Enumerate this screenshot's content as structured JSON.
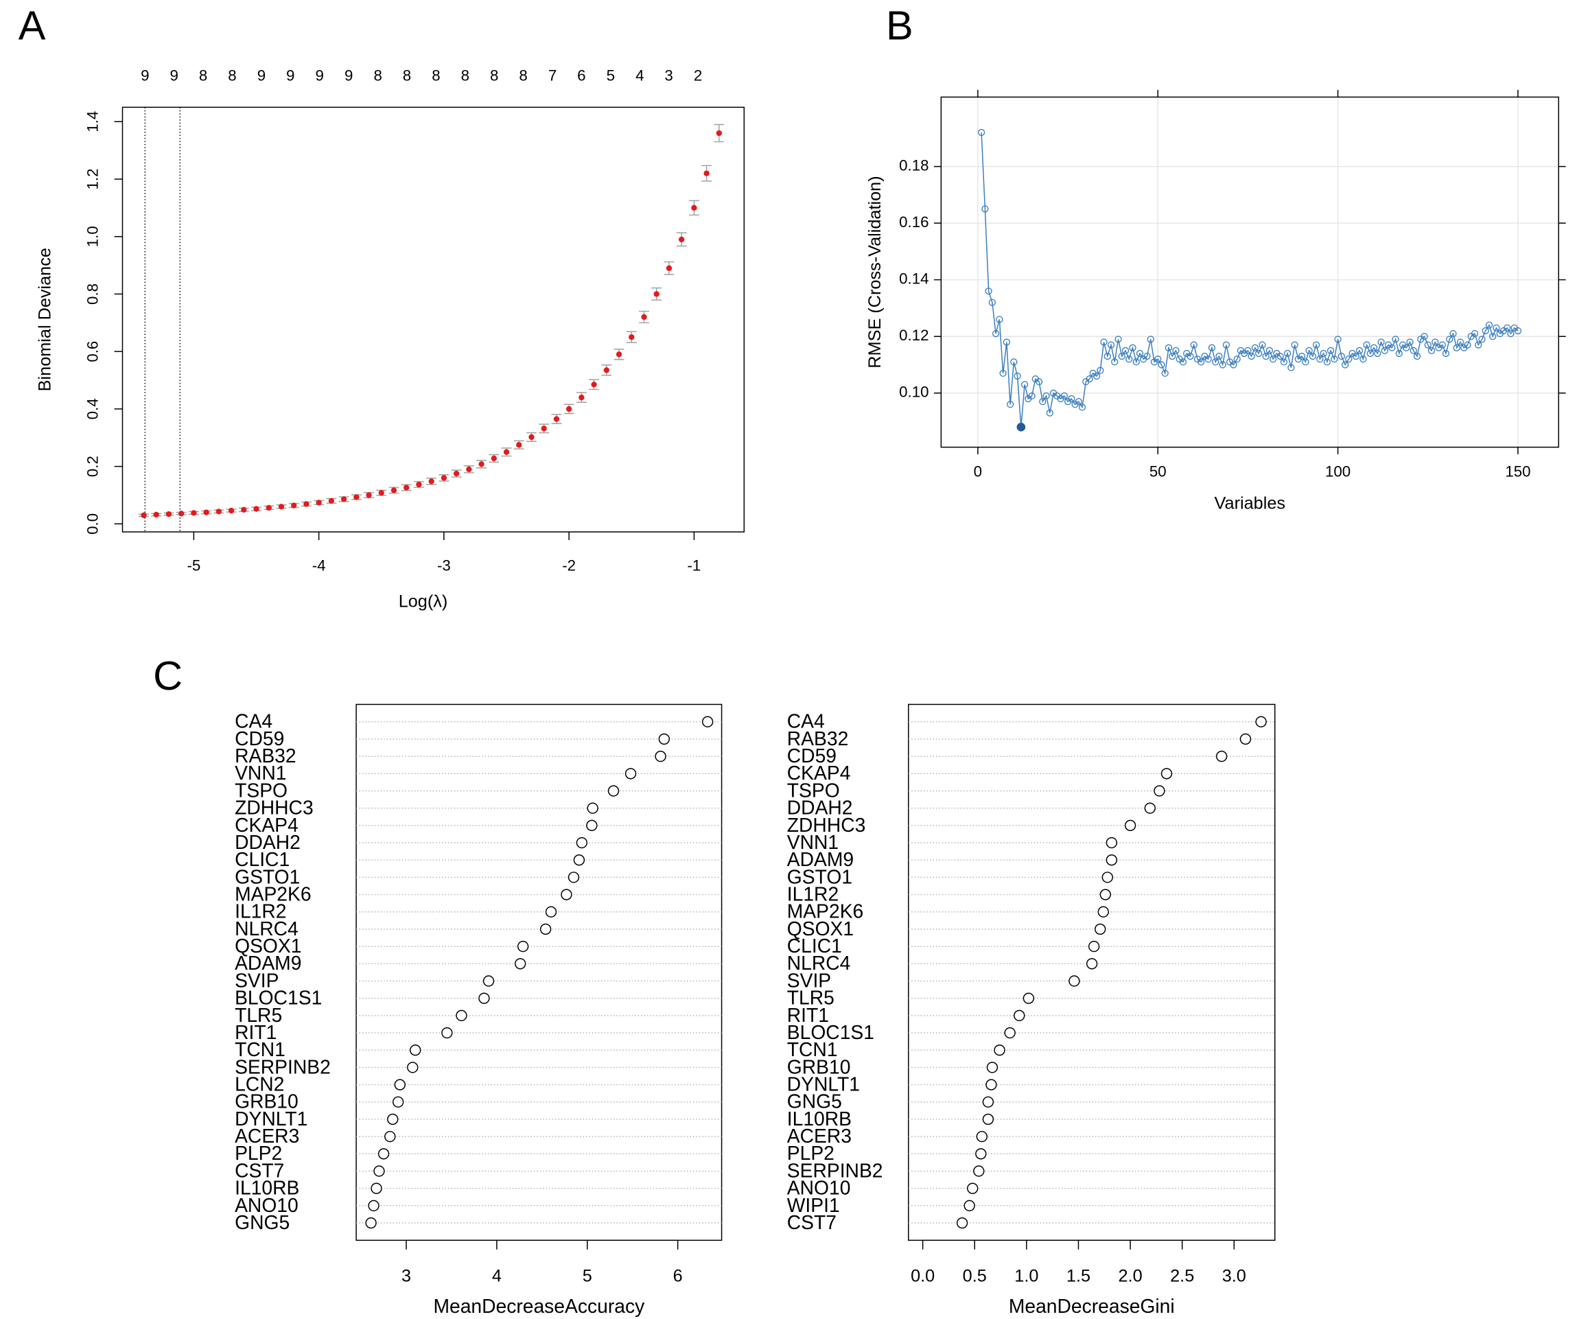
{
  "chart_data": [
    {
      "type": "errorbar",
      "panel_label": "A",
      "x_label": "Log(λ)",
      "y_label": "Binomial Deviance",
      "color": "#e41a1c",
      "error_color": "#a0a0a0",
      "x": [
        -5.4,
        -5.3,
        -5.2,
        -5.1,
        -5.0,
        -4.9,
        -4.8,
        -4.7,
        -4.6,
        -4.5,
        -4.4,
        -4.3,
        -4.2,
        -4.1,
        -4.0,
        -3.9,
        -3.8,
        -3.7,
        -3.6,
        -3.5,
        -3.4,
        -3.3,
        -3.2,
        -3.1,
        -3.0,
        -2.9,
        -2.8,
        -2.7,
        -2.6,
        -2.5,
        -2.4,
        -2.3,
        -2.2,
        -2.1,
        -2.0,
        -1.9,
        -1.8,
        -1.7,
        -1.6,
        -1.5,
        -1.4,
        -1.3,
        -1.2,
        -1.1,
        -1.0,
        -0.9,
        -0.8
      ],
      "values": [
        0.03,
        0.032,
        0.034,
        0.036,
        0.038,
        0.04,
        0.043,
        0.046,
        0.049,
        0.052,
        0.056,
        0.06,
        0.064,
        0.069,
        0.074,
        0.08,
        0.086,
        0.093,
        0.1,
        0.108,
        0.117,
        0.126,
        0.137,
        0.148,
        0.16,
        0.175,
        0.19,
        0.208,
        0.228,
        0.25,
        0.275,
        0.302,
        0.332,
        0.365,
        0.4,
        0.44,
        0.485,
        0.535,
        0.59,
        0.65,
        0.72,
        0.8,
        0.89,
        0.99,
        1.1,
        1.22,
        1.36
      ],
      "errors": [
        0.004,
        0.004,
        0.004,
        0.004,
        0.005,
        0.005,
        0.005,
        0.005,
        0.006,
        0.006,
        0.006,
        0.006,
        0.007,
        0.007,
        0.007,
        0.008,
        0.008,
        0.008,
        0.009,
        0.009,
        0.01,
        0.01,
        0.01,
        0.011,
        0.011,
        0.012,
        0.012,
        0.013,
        0.013,
        0.014,
        0.014,
        0.015,
        0.015,
        0.016,
        0.016,
        0.017,
        0.017,
        0.018,
        0.018,
        0.019,
        0.02,
        0.021,
        0.022,
        0.023,
        0.025,
        0.027,
        0.03
      ],
      "xlim": [
        -5.57,
        -0.6
      ],
      "ylim": [
        -0.028,
        1.45
      ],
      "xticks": [
        -5,
        -4,
        -3,
        -2,
        -1
      ],
      "yticks": [
        {
          "value": 0,
          "label": "0.0"
        },
        0.2,
        0.4,
        0.6,
        0.8,
        {
          "value": 1,
          "label": "1.0"
        },
        1.2,
        1.4
      ],
      "top_ticks": [
        {
          "value": -5.39,
          "label": "9"
        },
        {
          "value": -5.157,
          "label": "9"
        },
        {
          "value": -4.925,
          "label": "8"
        },
        {
          "value": -4.692,
          "label": "8"
        },
        {
          "value": -4.459,
          "label": "9"
        },
        {
          "value": -4.227,
          "label": "9"
        },
        {
          "value": -3.994,
          "label": "9"
        },
        {
          "value": -3.761,
          "label": "9"
        },
        {
          "value": -3.528,
          "label": "8"
        },
        {
          "value": -3.296,
          "label": "8"
        },
        {
          "value": -3.063,
          "label": "8"
        },
        {
          "value": -2.83,
          "label": "8"
        },
        {
          "value": -2.598,
          "label": "8"
        },
        {
          "value": -2.365,
          "label": "8"
        },
        {
          "value": -2.132,
          "label": "7"
        },
        {
          "value": -1.9,
          "label": "6"
        },
        {
          "value": -1.667,
          "label": "5"
        },
        {
          "value": -1.434,
          "label": "4"
        },
        {
          "value": -1.202,
          "label": "3"
        },
        {
          "value": -0.969,
          "label": "2"
        }
      ],
      "vlines": [
        -5.39,
        -5.11
      ]
    },
    {
      "type": "line",
      "panel_label": "B",
      "x_label": "Variables",
      "y_label": "RMSE (Cross-Validation)",
      "color": "#3a7ebf",
      "grid": true,
      "selected_x": 12,
      "x": [
        1,
        2,
        3,
        4,
        5,
        6,
        7,
        8,
        9,
        10,
        11,
        12,
        13,
        14,
        15,
        16,
        17,
        18,
        19,
        20,
        21,
        22,
        23,
        24,
        25,
        26,
        27,
        28,
        29,
        30,
        31,
        32,
        33,
        34,
        35,
        36,
        37,
        38,
        39,
        40,
        41,
        42,
        43,
        44,
        45,
        46,
        47,
        48,
        49,
        50,
        51,
        52,
        53,
        54,
        55,
        56,
        57,
        58,
        59,
        60,
        61,
        62,
        63,
        64,
        65,
        66,
        67,
        68,
        69,
        70,
        71,
        72,
        73,
        74,
        75,
        76,
        77,
        78,
        79,
        80,
        81,
        82,
        83,
        84,
        85,
        86,
        87,
        88,
        89,
        90,
        91,
        92,
        93,
        94,
        95,
        96,
        97,
        98,
        99,
        100,
        101,
        102,
        103,
        104,
        105,
        106,
        107,
        108,
        109,
        110,
        111,
        112,
        113,
        114,
        115,
        116,
        117,
        118,
        119,
        120,
        121,
        122,
        123,
        124,
        125,
        126,
        127,
        128,
        129,
        130,
        131,
        132,
        133,
        134,
        135,
        136,
        137,
        138,
        139,
        140,
        141,
        142,
        143,
        144,
        145,
        146,
        147,
        148,
        149,
        150
      ],
      "values": [
        0.192,
        0.165,
        0.136,
        0.132,
        0.121,
        0.126,
        0.107,
        0.118,
        0.096,
        0.111,
        0.106,
        0.088,
        0.103,
        0.098,
        0.099,
        0.105,
        0.104,
        0.097,
        0.099,
        0.093,
        0.1,
        0.099,
        0.098,
        0.099,
        0.097,
        0.098,
        0.096,
        0.097,
        0.095,
        0.104,
        0.105,
        0.107,
        0.106,
        0.108,
        0.118,
        0.113,
        0.117,
        0.111,
        0.119,
        0.113,
        0.115,
        0.112,
        0.116,
        0.111,
        0.114,
        0.112,
        0.113,
        0.119,
        0.111,
        0.112,
        0.11,
        0.107,
        0.116,
        0.113,
        0.115,
        0.112,
        0.111,
        0.114,
        0.113,
        0.117,
        0.112,
        0.111,
        0.113,
        0.112,
        0.116,
        0.111,
        0.113,
        0.11,
        0.117,
        0.111,
        0.11,
        0.112,
        0.115,
        0.114,
        0.115,
        0.113,
        0.116,
        0.114,
        0.117,
        0.113,
        0.115,
        0.112,
        0.114,
        0.113,
        0.111,
        0.114,
        0.109,
        0.117,
        0.112,
        0.113,
        0.111,
        0.115,
        0.113,
        0.117,
        0.112,
        0.114,
        0.111,
        0.115,
        0.112,
        0.119,
        0.113,
        0.11,
        0.112,
        0.114,
        0.113,
        0.115,
        0.112,
        0.117,
        0.114,
        0.116,
        0.114,
        0.118,
        0.115,
        0.117,
        0.116,
        0.119,
        0.114,
        0.117,
        0.116,
        0.118,
        0.115,
        0.113,
        0.119,
        0.12,
        0.117,
        0.115,
        0.118,
        0.116,
        0.117,
        0.114,
        0.119,
        0.121,
        0.116,
        0.118,
        0.116,
        0.117,
        0.12,
        0.121,
        0.117,
        0.119,
        0.122,
        0.124,
        0.12,
        0.123,
        0.121,
        0.122,
        0.123,
        0.121,
        0.123,
        0.122
      ],
      "xlim": [
        -10.2,
        161.3
      ],
      "ylim": [
        0.0809,
        0.2045
      ],
      "xticks": [
        0,
        50,
        100,
        150
      ],
      "yticks": [
        {
          "value": 0.1,
          "label": "0.10"
        },
        {
          "value": 0.12,
          "label": "0.12"
        },
        {
          "value": 0.14,
          "label": "0.14"
        },
        {
          "value": 0.16,
          "label": "0.16"
        },
        {
          "value": 0.18,
          "label": "0.18"
        }
      ]
    },
    {
      "type": "dot",
      "panel_label": "C",
      "x_label": "MeanDecreaseAccuracy",
      "categories": [
        "CA4",
        "CD59",
        "RAB32",
        "VNN1",
        "TSPO",
        "ZDHHC3",
        "CKAP4",
        "DDAH2",
        "CLIC1",
        "GSTO1",
        "MAP2K6",
        "IL1R2",
        "NLRC4",
        "QSOX1",
        "ADAM9",
        "SVIP",
        "BLOC1S1",
        "TLR5",
        "RIT1",
        "TCN1",
        "SERPINB2",
        "LCN2",
        "GRB10",
        "DYNLT1",
        "ACER3",
        "PLP2",
        "CST7",
        "IL10RB",
        "ANO10",
        "GNG5"
      ],
      "values": [
        6.33,
        5.85,
        5.81,
        5.48,
        5.29,
        5.06,
        5.05,
        4.94,
        4.91,
        4.85,
        4.77,
        4.6,
        4.54,
        4.29,
        4.26,
        3.91,
        3.86,
        3.61,
        3.45,
        3.1,
        3.07,
        2.93,
        2.91,
        2.85,
        2.82,
        2.75,
        2.7,
        2.67,
        2.64,
        2.61
      ],
      "xlim": [
        2.447,
        6.485
      ],
      "xticks": [
        3,
        4,
        5,
        6
      ]
    },
    {
      "type": "dot",
      "x_label": "MeanDecreaseGini",
      "categories": [
        "CA4",
        "RAB32",
        "CD59",
        "CKAP4",
        "TSPO",
        "DDAH2",
        "ZDHHC3",
        "VNN1",
        "ADAM9",
        "GSTO1",
        "IL1R2",
        "MAP2K6",
        "QSOX1",
        "CLIC1",
        "NLRC4",
        "SVIP",
        "TLR5",
        "RIT1",
        "BLOC1S1",
        "TCN1",
        "GRB10",
        "DYNLT1",
        "GNG5",
        "IL10RB",
        "ACER3",
        "PLP2",
        "SERPINB2",
        "ANO10",
        "WIPI1",
        "CST7"
      ],
      "values": [
        3.26,
        3.11,
        2.88,
        2.35,
        2.28,
        2.19,
        2.0,
        1.82,
        1.82,
        1.78,
        1.76,
        1.74,
        1.71,
        1.65,
        1.63,
        1.46,
        1.02,
        0.93,
        0.84,
        0.74,
        0.67,
        0.66,
        0.63,
        0.63,
        0.57,
        0.56,
        0.54,
        0.48,
        0.45,
        0.38
      ],
      "xlim": [
        -0.138,
        3.393
      ],
      "xticks": [
        {
          "value": 0,
          "label": "0.0"
        },
        0.5,
        {
          "value": 1,
          "label": "1.0"
        },
        1.5,
        {
          "value": 2,
          "label": "2.0"
        },
        2.5,
        {
          "value": 3,
          "label": "3.0"
        }
      ]
    }
  ]
}
